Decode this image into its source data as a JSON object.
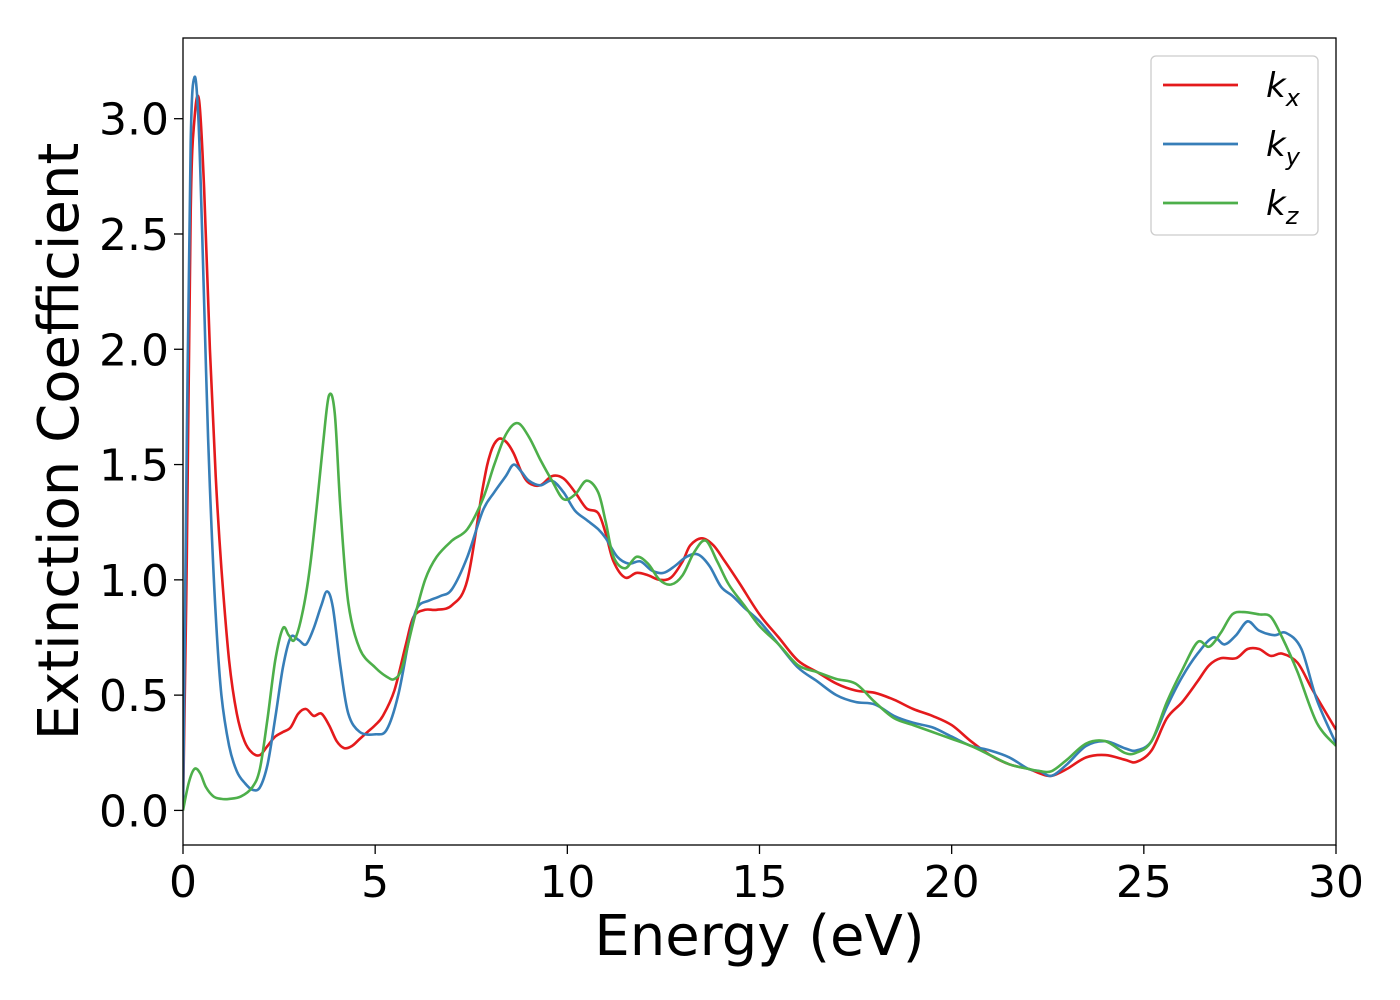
{
  "chart_data": {
    "type": "line",
    "xlabel": "Energy (eV)",
    "ylabel": "Extinction Coefficient",
    "xlim": [
      0,
      30
    ],
    "ylim": [
      -0.15,
      3.35
    ],
    "xticks": [
      0,
      5,
      10,
      15,
      20,
      25,
      30
    ],
    "xtick_labels": [
      "0",
      "5",
      "10",
      "15",
      "20",
      "25",
      "30"
    ],
    "yticks": [
      0.0,
      0.5,
      1.0,
      1.5,
      2.0,
      2.5,
      3.0
    ],
    "ytick_labels": [
      "0.0",
      "0.5",
      "1.0",
      "1.5",
      "2.0",
      "2.5",
      "3.0"
    ],
    "grid": false,
    "legend_position": "top-right",
    "series": [
      {
        "name": "k",
        "subscript": "x",
        "color": "#e41a1c",
        "x": [
          0,
          0.1,
          0.2,
          0.3,
          0.42,
          0.55,
          0.7,
          0.85,
          1.0,
          1.2,
          1.4,
          1.6,
          1.8,
          2.0,
          2.2,
          2.4,
          2.6,
          2.8,
          3.0,
          3.2,
          3.4,
          3.6,
          3.8,
          4.0,
          4.2,
          4.4,
          4.6,
          4.8,
          5.0,
          5.2,
          5.5,
          5.8,
          6.0,
          6.3,
          6.6,
          7.0,
          7.4,
          7.8,
          8.0,
          8.2,
          8.4,
          8.6,
          8.8,
          9.0,
          9.3,
          9.6,
          9.9,
          10.2,
          10.5,
          10.8,
          11.0,
          11.2,
          11.5,
          11.8,
          12.1,
          12.4,
          12.7,
          13.0,
          13.2,
          13.5,
          13.8,
          14.1,
          14.5,
          15.0,
          15.5,
          16.0,
          16.5,
          17.0,
          17.5,
          18.0,
          18.5,
          19.0,
          19.5,
          20.0,
          20.5,
          21.0,
          21.5,
          22.0,
          22.3,
          22.6,
          23.0,
          23.5,
          24.0,
          24.5,
          24.8,
          25.2,
          25.6,
          26.0,
          26.4,
          26.7,
          27.0,
          27.4,
          27.7,
          28.0,
          28.3,
          28.6,
          29.0,
          29.4,
          30.0
        ],
        "values": [
          0.0,
          1.1,
          2.6,
          3.0,
          3.08,
          2.7,
          2.0,
          1.45,
          1.05,
          0.65,
          0.42,
          0.3,
          0.25,
          0.24,
          0.28,
          0.32,
          0.34,
          0.36,
          0.42,
          0.44,
          0.41,
          0.42,
          0.37,
          0.3,
          0.27,
          0.28,
          0.31,
          0.34,
          0.37,
          0.41,
          0.52,
          0.72,
          0.84,
          0.87,
          0.87,
          0.89,
          1.0,
          1.4,
          1.55,
          1.61,
          1.6,
          1.55,
          1.47,
          1.42,
          1.41,
          1.45,
          1.44,
          1.38,
          1.31,
          1.29,
          1.2,
          1.08,
          1.01,
          1.03,
          1.02,
          1.0,
          1.01,
          1.08,
          1.15,
          1.18,
          1.15,
          1.08,
          0.98,
          0.85,
          0.75,
          0.65,
          0.6,
          0.55,
          0.52,
          0.51,
          0.48,
          0.44,
          0.41,
          0.37,
          0.3,
          0.24,
          0.2,
          0.18,
          0.16,
          0.15,
          0.18,
          0.23,
          0.24,
          0.22,
          0.21,
          0.26,
          0.4,
          0.47,
          0.56,
          0.63,
          0.66,
          0.66,
          0.7,
          0.7,
          0.67,
          0.68,
          0.64,
          0.52,
          0.35
        ]
      },
      {
        "name": "k",
        "subscript": "y",
        "color": "#377eb8",
        "x": [
          0,
          0.1,
          0.2,
          0.3,
          0.4,
          0.5,
          0.6,
          0.7,
          0.85,
          1.0,
          1.2,
          1.4,
          1.6,
          1.8,
          2.0,
          2.2,
          2.4,
          2.6,
          2.8,
          3.0,
          3.2,
          3.4,
          3.6,
          3.75,
          3.9,
          4.1,
          4.3,
          4.6,
          5.0,
          5.3,
          5.6,
          5.9,
          6.1,
          6.4,
          6.7,
          7.0,
          7.4,
          7.8,
          8.1,
          8.4,
          8.6,
          8.8,
          9.0,
          9.3,
          9.6,
          9.9,
          10.2,
          10.5,
          10.8,
          11.0,
          11.3,
          11.6,
          11.9,
          12.2,
          12.5,
          12.8,
          13.1,
          13.4,
          13.7,
          14.0,
          14.3,
          14.6,
          15.0,
          15.5,
          16.0,
          16.5,
          17.0,
          17.5,
          18.0,
          18.5,
          19.0,
          19.5,
          20.0,
          20.5,
          21.0,
          21.5,
          22.0,
          22.3,
          22.6,
          23.0,
          23.5,
          24.0,
          24.5,
          24.8,
          25.2,
          25.6,
          26.0,
          26.4,
          26.8,
          27.1,
          27.4,
          27.7,
          28.0,
          28.4,
          28.7,
          29.1,
          29.5,
          30.0
        ],
        "values": [
          0.0,
          1.6,
          2.9,
          3.18,
          3.0,
          2.5,
          1.9,
          1.4,
          0.85,
          0.5,
          0.28,
          0.17,
          0.12,
          0.09,
          0.1,
          0.2,
          0.4,
          0.62,
          0.75,
          0.74,
          0.72,
          0.79,
          0.89,
          0.95,
          0.88,
          0.62,
          0.42,
          0.34,
          0.33,
          0.35,
          0.5,
          0.76,
          0.88,
          0.91,
          0.93,
          0.96,
          1.1,
          1.3,
          1.38,
          1.45,
          1.5,
          1.47,
          1.43,
          1.41,
          1.43,
          1.38,
          1.3,
          1.26,
          1.22,
          1.18,
          1.1,
          1.07,
          1.08,
          1.04,
          1.03,
          1.06,
          1.1,
          1.11,
          1.06,
          0.97,
          0.93,
          0.88,
          0.82,
          0.72,
          0.62,
          0.56,
          0.5,
          0.47,
          0.46,
          0.41,
          0.38,
          0.36,
          0.32,
          0.28,
          0.26,
          0.23,
          0.18,
          0.17,
          0.15,
          0.2,
          0.28,
          0.3,
          0.27,
          0.26,
          0.3,
          0.45,
          0.58,
          0.68,
          0.75,
          0.72,
          0.76,
          0.82,
          0.78,
          0.76,
          0.77,
          0.7,
          0.48,
          0.29
        ]
      },
      {
        "name": "k",
        "subscript": "z",
        "color": "#4daf4a",
        "x": [
          0,
          0.15,
          0.3,
          0.45,
          0.6,
          0.8,
          1.0,
          1.2,
          1.5,
          1.8,
          2.0,
          2.2,
          2.4,
          2.6,
          2.75,
          2.9,
          3.1,
          3.3,
          3.5,
          3.65,
          3.8,
          3.95,
          4.1,
          4.3,
          4.6,
          5.0,
          5.3,
          5.5,
          5.7,
          6.0,
          6.3,
          6.6,
          7.0,
          7.4,
          7.8,
          8.1,
          8.4,
          8.7,
          9.0,
          9.3,
          9.6,
          9.9,
          10.2,
          10.5,
          10.8,
          11.0,
          11.2,
          11.5,
          11.8,
          12.1,
          12.4,
          12.7,
          13.0,
          13.3,
          13.6,
          13.9,
          14.2,
          14.6,
          15.0,
          15.5,
          16.0,
          16.5,
          17.0,
          17.5,
          18.0,
          18.5,
          19.0,
          19.5,
          20.0,
          20.5,
          21.0,
          21.5,
          22.0,
          22.3,
          22.6,
          23.0,
          23.5,
          24.0,
          24.5,
          24.8,
          25.2,
          25.6,
          26.0,
          26.4,
          26.7,
          27.0,
          27.3,
          27.6,
          28.0,
          28.3,
          28.6,
          29.0,
          29.5,
          30.0
        ],
        "values": [
          0.0,
          0.12,
          0.18,
          0.16,
          0.1,
          0.06,
          0.05,
          0.05,
          0.06,
          0.1,
          0.18,
          0.4,
          0.65,
          0.79,
          0.76,
          0.74,
          0.85,
          1.05,
          1.35,
          1.6,
          1.8,
          1.72,
          1.3,
          0.9,
          0.7,
          0.62,
          0.58,
          0.57,
          0.62,
          0.82,
          1.0,
          1.1,
          1.17,
          1.22,
          1.35,
          1.5,
          1.63,
          1.68,
          1.62,
          1.52,
          1.43,
          1.35,
          1.37,
          1.43,
          1.38,
          1.25,
          1.1,
          1.05,
          1.1,
          1.07,
          1.0,
          0.98,
          1.02,
          1.12,
          1.17,
          1.08,
          0.98,
          0.89,
          0.8,
          0.72,
          0.63,
          0.6,
          0.57,
          0.55,
          0.47,
          0.4,
          0.37,
          0.34,
          0.31,
          0.28,
          0.24,
          0.2,
          0.18,
          0.17,
          0.17,
          0.22,
          0.29,
          0.3,
          0.25,
          0.25,
          0.3,
          0.47,
          0.61,
          0.73,
          0.71,
          0.77,
          0.85,
          0.86,
          0.85,
          0.84,
          0.75,
          0.6,
          0.38,
          0.28
        ]
      }
    ]
  }
}
